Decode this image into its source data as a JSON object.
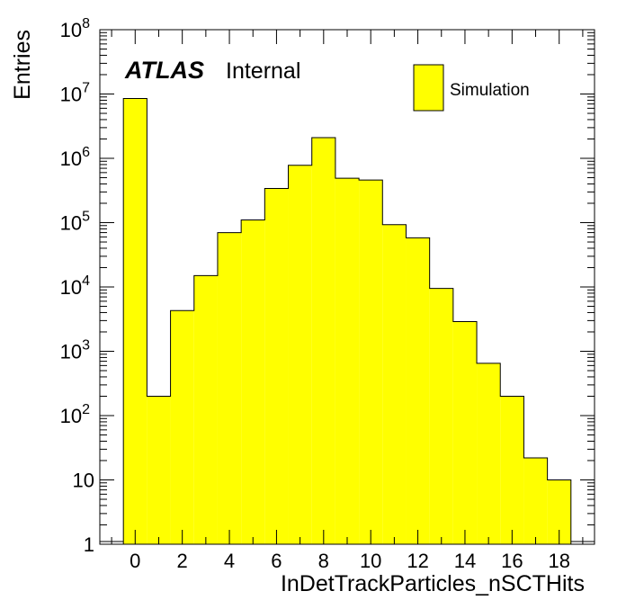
{
  "chart_data": {
    "type": "bar",
    "xlabel": "InDetTrackParticles_nSCTHits",
    "ylabel": "Entries",
    "xlim": [
      -1.5,
      19.5
    ],
    "ylim": [
      1,
      100000000
    ],
    "yscale": "log",
    "grid": false,
    "label_primary": "ATLAS",
    "label_secondary": "Internal",
    "legend": {
      "placement": "top-right",
      "entries": [
        {
          "label": "Simulation",
          "color": "#ffff00"
        }
      ]
    },
    "bin_edges": [
      -0.5,
      0.5,
      1.5,
      2.5,
      3.5,
      4.5,
      5.5,
      6.5,
      7.5,
      8.5,
      9.5,
      10.5,
      11.5,
      12.5,
      13.5,
      14.5,
      15.5,
      16.5,
      17.5,
      18.5
    ],
    "series": [
      {
        "name": "Simulation",
        "color": "#ffff00",
        "values": [
          8500000,
          200,
          4300,
          15000,
          70000,
          110000,
          340000,
          780000,
          2100000,
          490000,
          460000,
          93000,
          58000,
          9500,
          2900,
          650,
          200,
          22,
          10
        ]
      }
    ],
    "x_ticks": [
      {
        "value": 0,
        "label": "0"
      },
      {
        "value": 2,
        "label": "2"
      },
      {
        "value": 4,
        "label": "4"
      },
      {
        "value": 6,
        "label": "6"
      },
      {
        "value": 8,
        "label": "8"
      },
      {
        "value": 10,
        "label": "10"
      },
      {
        "value": 12,
        "label": "12"
      },
      {
        "value": 14,
        "label": "14"
      },
      {
        "value": 16,
        "label": "16"
      },
      {
        "value": 18,
        "label": "18"
      }
    ],
    "y_ticks": [
      {
        "value": 1,
        "base": "1",
        "exp": ""
      },
      {
        "value": 10,
        "base": "10",
        "exp": ""
      },
      {
        "value": 100,
        "base": "10",
        "exp": "2"
      },
      {
        "value": 1000,
        "base": "10",
        "exp": "3"
      },
      {
        "value": 10000,
        "base": "10",
        "exp": "4"
      },
      {
        "value": 100000,
        "base": "10",
        "exp": "5"
      },
      {
        "value": 1000000,
        "base": "10",
        "exp": "6"
      },
      {
        "value": 10000000,
        "base": "10",
        "exp": "7"
      },
      {
        "value": 100000000,
        "base": "10",
        "exp": "8"
      }
    ]
  }
}
